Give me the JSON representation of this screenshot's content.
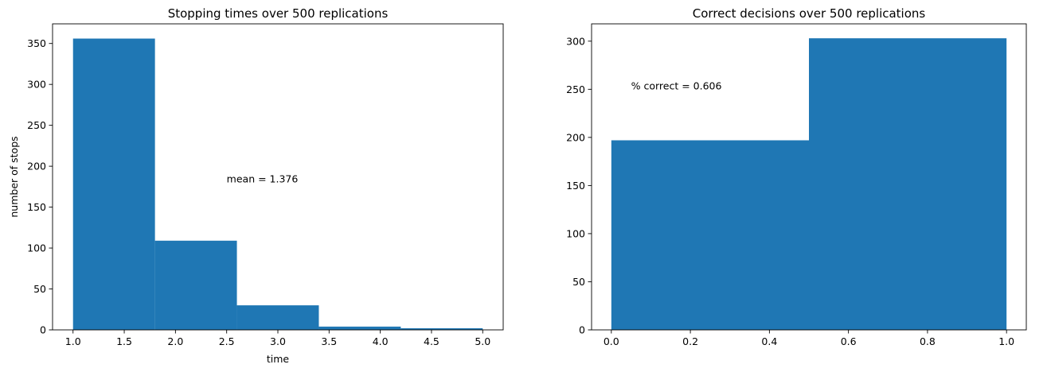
{
  "chart_data": [
    {
      "type": "bar",
      "title": "Stopping times over 500 replications",
      "xlabel": "time",
      "ylabel": "number of stops",
      "color": "#1f77b4",
      "bin_edges": [
        1.0,
        1.8,
        2.6,
        3.4,
        4.2,
        5.0
      ],
      "values": [
        356,
        109,
        30,
        4,
        2
      ],
      "xlim": [
        0.8,
        5.2
      ],
      "ylim": [
        0,
        374
      ],
      "xticks": [
        1.0,
        1.5,
        2.0,
        2.5,
        3.0,
        3.5,
        4.0,
        4.5,
        5.0
      ],
      "xtick_labels": [
        "1.0",
        "1.5",
        "2.0",
        "2.5",
        "3.0",
        "3.5",
        "4.0",
        "4.5",
        "5.0"
      ],
      "yticks": [
        0,
        50,
        100,
        150,
        200,
        250,
        300,
        350
      ],
      "ytick_labels": [
        "0",
        "50",
        "100",
        "150",
        "200",
        "250",
        "300",
        "350"
      ],
      "grid": false,
      "annotation": {
        "text": "mean = 1.376",
        "x": 2.5,
        "y": 180
      }
    },
    {
      "type": "bar",
      "title": "Correct decisions over 500 replications",
      "xlabel": "",
      "ylabel": "",
      "color": "#1f77b4",
      "bin_edges": [
        0.0,
        0.5,
        1.0
      ],
      "values": [
        197,
        303
      ],
      "xlim": [
        -0.05,
        1.05
      ],
      "ylim": [
        0,
        318
      ],
      "xticks": [
        0.0,
        0.2,
        0.4,
        0.6,
        0.8,
        1.0
      ],
      "xtick_labels": [
        "0.0",
        "0.2",
        "0.4",
        "0.6",
        "0.8",
        "1.0"
      ],
      "yticks": [
        0,
        50,
        100,
        150,
        200,
        250,
        300
      ],
      "ytick_labels": [
        "0",
        "50",
        "100",
        "150",
        "200",
        "250",
        "300"
      ],
      "grid": false,
      "annotation": {
        "text": "% correct = 0.606",
        "x": 0.05,
        "y": 250
      }
    }
  ]
}
